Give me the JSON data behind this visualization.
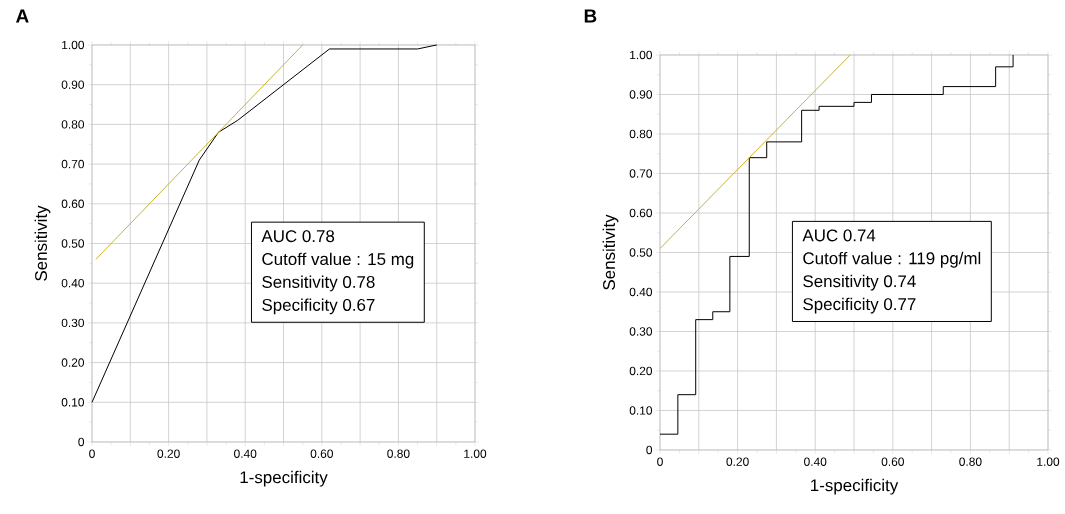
{
  "chart_data": [
    {
      "type": "line",
      "title": "A",
      "xlabel": "1-specificity",
      "ylabel": "Sensitivity",
      "xlim": [
        0,
        1
      ],
      "ylim": [
        0,
        1
      ],
      "grid": true,
      "xticks": [
        0,
        {
          "value": 0.1,
          "label": null
        },
        {
          "value": 0.2,
          "label": "0.20"
        },
        {
          "value": 0.3,
          "label": null
        },
        {
          "value": 0.4,
          "label": "0.40"
        },
        {
          "value": 0.5,
          "label": null
        },
        {
          "value": 0.6,
          "label": "0.60"
        },
        {
          "value": 0.7,
          "label": null
        },
        {
          "value": 0.8,
          "label": "0.80"
        },
        {
          "value": 0.9,
          "label": null
        },
        {
          "value": 1,
          "label": "1.00"
        }
      ],
      "yticks": [
        0,
        {
          "value": 0.1,
          "label": "0.10"
        },
        {
          "value": 0.2,
          "label": "0.20"
        },
        {
          "value": 0.3,
          "label": "0.30"
        },
        {
          "value": 0.4,
          "label": "0.40"
        },
        {
          "value": 0.5,
          "label": "0.50"
        },
        {
          "value": 0.6,
          "label": "0.60"
        },
        {
          "value": 0.7,
          "label": "0.70"
        },
        {
          "value": 0.8,
          "label": "0.80"
        },
        {
          "value": 0.9,
          "label": "0.90"
        },
        {
          "value": 1,
          "label": "1.00"
        }
      ],
      "series": [
        {
          "color": "#000000",
          "x": [
            0,
            0.28,
            0.33,
            0.38,
            0.62,
            0.85,
            0.9
          ],
          "values": [
            0.1,
            0.71,
            0.78,
            0.81,
            0.99,
            0.99,
            1.0
          ]
        },
        {
          "color": "#c8b432",
          "x": [
            0.01,
            0.55
          ],
          "values": [
            0.46,
            1.0
          ]
        }
      ],
      "annotations": [
        "AUC  0.78",
        "Cutoff value : 15 mg",
        "Sensitivity 0.78",
        "Specificity 0.67"
      ]
    },
    {
      "type": "step",
      "title": "B",
      "xlabel": "1-specificity",
      "ylabel": "Sensitivity",
      "xlim": [
        0,
        1
      ],
      "ylim": [
        0,
        1
      ],
      "grid": true,
      "xticks": [
        0,
        {
          "value": 0.1,
          "label": null
        },
        {
          "value": 0.2,
          "label": "0.20"
        },
        {
          "value": 0.3,
          "label": null
        },
        {
          "value": 0.4,
          "label": "0.40"
        },
        {
          "value": 0.5,
          "label": null
        },
        {
          "value": 0.6,
          "label": "0.60"
        },
        {
          "value": 0.7,
          "label": null
        },
        {
          "value": 0.8,
          "label": "0.80"
        },
        {
          "value": 0.9,
          "label": null
        },
        {
          "value": 1,
          "label": "1.00"
        }
      ],
      "yticks": [
        0,
        {
          "value": 0.1,
          "label": "0.10"
        },
        {
          "value": 0.2,
          "label": "0.20"
        },
        {
          "value": 0.3,
          "label": "0.30"
        },
        {
          "value": 0.4,
          "label": "0.40"
        },
        {
          "value": 0.5,
          "label": "0.50"
        },
        {
          "value": 0.6,
          "label": "0.60"
        },
        {
          "value": 0.7,
          "label": "0.70"
        },
        {
          "value": 0.8,
          "label": "0.80"
        },
        {
          "value": 0.9,
          "label": "0.90"
        },
        {
          "value": 1,
          "label": "1.00"
        }
      ],
      "series": [
        {
          "color": "#000000",
          "x": [
            0,
            0.046,
            0.092,
            0.136,
            0.18,
            0.23,
            0.275,
            0.365,
            0.41,
            0.5,
            0.545,
            0.73,
            0.865,
            0.91
          ],
          "values": [
            0.04,
            0.14,
            0.33,
            0.35,
            0.49,
            0.74,
            0.78,
            0.86,
            0.87,
            0.88,
            0.9,
            0.92,
            0.97,
            1.0
          ]
        },
        {
          "type": "line",
          "color": "#c8b432",
          "x": [
            0,
            0.49
          ],
          "values": [
            0.51,
            1.0
          ]
        }
      ],
      "annotations": [
        "AUC  0.74",
        "Cutoff value : 119 pg/ml",
        "Sensitivity 0.74",
        "Specificity 0.77"
      ]
    }
  ]
}
